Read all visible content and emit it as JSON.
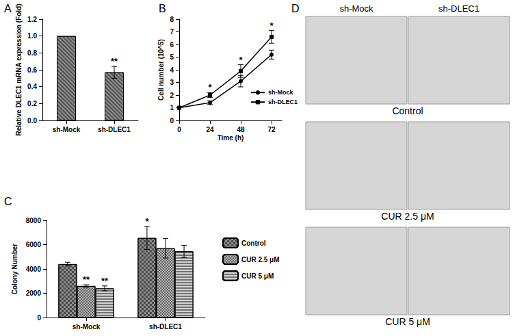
{
  "chart_data": [
    {
      "panel": "A",
      "type": "bar",
      "categories": [
        "sh-Mock",
        "sh-DLEC1"
      ],
      "values": [
        1,
        0.57
      ],
      "errors": [
        0,
        0.07
      ],
      "color": "#8c8c8c",
      "y_label": "Relative DLEC1 mRNA expression (Fold)",
      "ylim": [
        0,
        1.2
      ],
      "yticks": [
        {
          "value": 0,
          "label": "0.0"
        },
        {
          "value": 0.2,
          "label": "0.2"
        },
        {
          "value": 0.4,
          "label": "0.4"
        },
        {
          "value": 0.6,
          "label": "0.6"
        },
        {
          "value": 0.8,
          "label": "0.8"
        },
        {
          "value": 1,
          "label": "1.0"
        },
        {
          "value": 1.2,
          "label": "1.2"
        }
      ],
      "annotations": [
        {
          "category": "sh-DLEC1",
          "text": "**"
        }
      ],
      "grid": false
    },
    {
      "panel": "B",
      "type": "line",
      "x": [
        0,
        24,
        48,
        72
      ],
      "series": [
        {
          "name": "sh-Mock",
          "color": "#000000",
          "marker": "circle",
          "values": [
            1,
            1.4,
            3.1,
            5.2
          ],
          "errors": [
            0,
            0.15,
            0.45,
            0.35
          ]
        },
        {
          "name": "sh-DLEC1",
          "color": "#000000",
          "marker": "square",
          "values": [
            1,
            2.0,
            3.9,
            6.6
          ],
          "errors": [
            0,
            0.2,
            0.5,
            0.5
          ]
        }
      ],
      "x_label": "Time (h)",
      "y_label": "Cell number (10^5)",
      "xlim": [
        0,
        80
      ],
      "xticks": [
        0,
        24,
        48,
        72
      ],
      "ylim": [
        0,
        8
      ],
      "yticks": [
        0,
        1,
        2,
        3,
        4,
        5,
        6,
        7,
        8
      ],
      "legend": "right",
      "annotations": [
        {
          "x": 24,
          "text": "*"
        },
        {
          "x": 48,
          "text": "*"
        },
        {
          "x": 72,
          "text": "*"
        }
      ],
      "grid": false
    },
    {
      "panel": "C",
      "type": "bar",
      "categories": [
        "sh-Mock",
        "sh-DLEC1"
      ],
      "series": [
        {
          "name": "Control",
          "color": "#8a8a8a",
          "values": [
            4400,
            6550
          ],
          "errors": [
            150,
            950
          ]
        },
        {
          "name": "CUR 2.5 μM",
          "color": "#b0b0b0",
          "values": [
            2600,
            5700
          ],
          "errors": [
            100,
            800
          ]
        },
        {
          "name": "CUR 5 μM",
          "color": "#d2d2d2",
          "values": [
            2400,
            5450
          ],
          "errors": [
            200,
            500
          ]
        }
      ],
      "y_label": "Colony Number",
      "ylim": [
        0,
        8000
      ],
      "yticks": [
        0,
        2000,
        4000,
        6000,
        8000
      ],
      "legend": "right",
      "annotations": [
        {
          "series": "Control",
          "category": "sh-DLEC1",
          "text": "*"
        },
        {
          "series": "CUR 2.5 μM",
          "category": "sh-Mock",
          "text": "**"
        },
        {
          "series": "CUR 5 μM",
          "category": "sh-Mock",
          "text": "**"
        }
      ],
      "grid": false
    }
  ],
  "image_panel": {
    "panel": "D",
    "columns": [
      "sh-Mock",
      "sh-DLEC1"
    ],
    "rows": [
      "Control",
      "CUR 2.5 μM",
      "CUR 5 μM"
    ]
  }
}
